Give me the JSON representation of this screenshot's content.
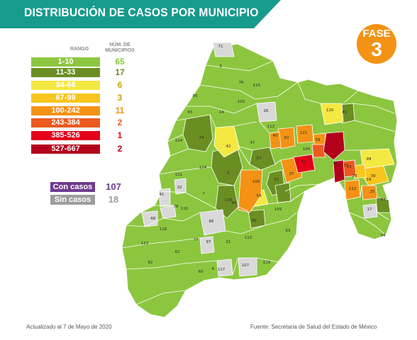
{
  "header": {
    "title": "DISTRIBUCIÓN DE CASOS POR MUNICIPIO",
    "band_color": "#179b8c"
  },
  "phase": {
    "label": "FASE",
    "number": "3",
    "color": "#f39214"
  },
  "legend": {
    "range_header": "RANGO",
    "count_header_line1": "NÚM. DE",
    "count_header_line2": "MUNICIPIOS",
    "items": [
      {
        "range": "1-10",
        "count": "65",
        "color": "#8cc63f"
      },
      {
        "range": "11-33",
        "count": "17",
        "color": "#6b8e23"
      },
      {
        "range": "34-66",
        "count": "6",
        "color": "#f4e842"
      },
      {
        "range": "67-99",
        "count": "3",
        "color": "#f7c51e"
      },
      {
        "range": "100-242",
        "count": "11",
        "color": "#f39214"
      },
      {
        "range": "243-384",
        "count": "2",
        "color": "#eb5a1e"
      },
      {
        "range": "385-526",
        "count": "1",
        "color": "#e3001b"
      },
      {
        "range": "527-667",
        "count": "2",
        "color": "#b3001b"
      }
    ]
  },
  "status": [
    {
      "label": "Con casos",
      "count": "107",
      "color": "#6f3b8f"
    },
    {
      "label": "Sin casos",
      "count": "18",
      "color": "#9d9d9d"
    }
  ],
  "footer": {
    "updated": "Actualizado al 7 de Mayo de 2020",
    "source": "Fuente: Secretaria de Salud del Estado de México"
  },
  "map": {
    "no_cases_color": "#d9d9d9",
    "municipality_labels": [
      "71",
      "3",
      "85",
      "102",
      "14",
      "26",
      "65",
      "115",
      "76",
      "112",
      "74",
      "124",
      "42",
      "47",
      "5",
      "114",
      "111",
      "106",
      "32",
      "7",
      "41",
      "110",
      "78",
      "66",
      "116",
      "86",
      "64",
      "118",
      "54",
      "90",
      "123",
      "62",
      "82",
      "77",
      "97",
      "21",
      "113",
      "60",
      "4",
      "117",
      "107",
      "119",
      "109",
      "63",
      "51",
      "19",
      "17",
      "34",
      "93",
      "39",
      "25",
      "122",
      "99",
      "120",
      "13",
      "33",
      "40",
      "92",
      "121",
      "57",
      "104",
      "58",
      "28",
      "31",
      "95",
      "81",
      "37"
    ]
  }
}
